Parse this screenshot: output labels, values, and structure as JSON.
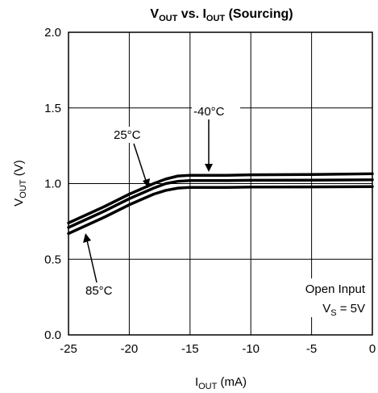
{
  "chart_data": {
    "type": "line",
    "title": {
      "main": "V",
      "main_sub": "OUT",
      "mid": " vs. I",
      "mid_sub": "OUT",
      "tail": " (Sourcing)"
    },
    "xlabel": {
      "main": "I",
      "sub": "OUT",
      "tail": " (mA)"
    },
    "ylabel": {
      "main": "V",
      "sub": "OUT",
      "tail": " (V)"
    },
    "xlim": [
      -25,
      0
    ],
    "ylim": [
      0,
      2
    ],
    "x_ticks": [
      -25,
      -20,
      -15,
      -10,
      -5,
      0
    ],
    "x_tick_labels": [
      "-25",
      "-20",
      "-15",
      "-10",
      "-5",
      "0"
    ],
    "y_ticks": [
      0,
      0.5,
      1,
      1.5,
      2
    ],
    "y_tick_labels": [
      "0.0",
      "0.5",
      "1.0",
      "1.5",
      "2.0"
    ],
    "grid": true,
    "series": [
      {
        "name": "-40°C",
        "x": [
          -25,
          -22,
          -20,
          -18,
          -17,
          -16,
          -15,
          -12,
          -10,
          -5,
          0
        ],
        "y": [
          0.74,
          0.85,
          0.93,
          1.0,
          1.03,
          1.05,
          1.055,
          1.055,
          1.058,
          1.06,
          1.065
        ]
      },
      {
        "name": "25°C",
        "x": [
          -25,
          -22,
          -20,
          -18,
          -17,
          -16,
          -15,
          -12,
          -10,
          -5,
          0
        ],
        "y": [
          0.71,
          0.82,
          0.9,
          0.97,
          1.0,
          1.015,
          1.02,
          1.02,
          1.022,
          1.023,
          1.025
        ]
      },
      {
        "name": "85°C",
        "x": [
          -25,
          -22,
          -20,
          -18,
          -17,
          -16,
          -15,
          -12,
          -10,
          -5,
          0
        ],
        "y": [
          0.67,
          0.78,
          0.86,
          0.93,
          0.955,
          0.97,
          0.975,
          0.975,
          0.977,
          0.978,
          0.98
        ]
      }
    ],
    "annotations": {
      "t40": "-40°C",
      "t25": "25°C",
      "t85": "85°C",
      "open_input": "Open Input",
      "vs_main": "V",
      "vs_sub": "S",
      "vs_tail": " = 5V"
    },
    "line_color": "#000000"
  }
}
